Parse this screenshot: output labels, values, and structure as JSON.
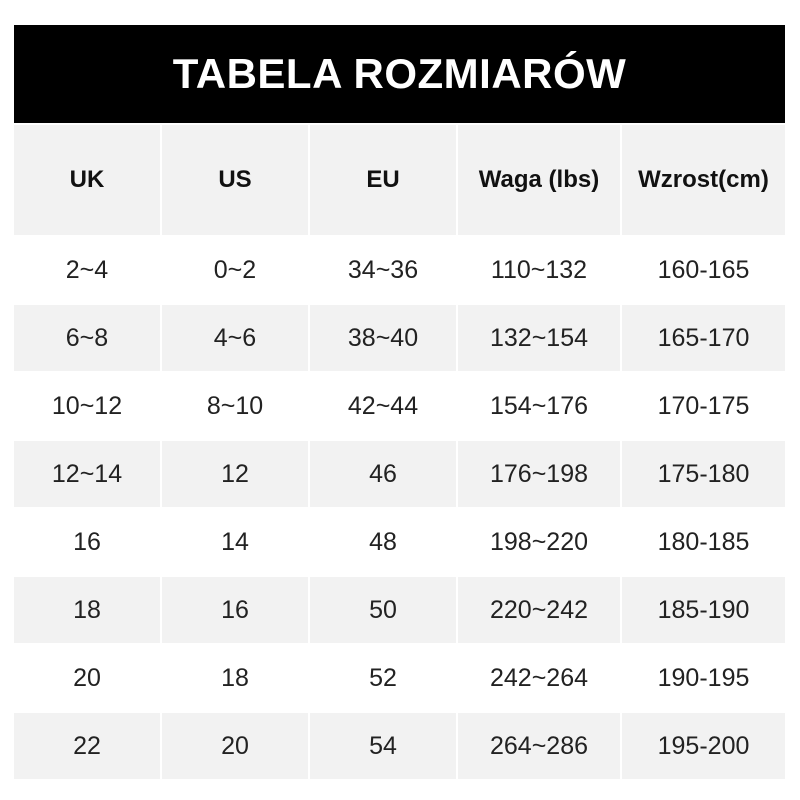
{
  "title": "TABELA ROZMIARÓW",
  "headers": [
    "UK",
    "US",
    "EU",
    "Waga (lbs)",
    "Wzrost(cm)"
  ],
  "rows": [
    [
      "2~4",
      "0~2",
      "34~36",
      "110~132",
      "160-165"
    ],
    [
      "6~8",
      "4~6",
      "38~40",
      "132~154",
      "165-170"
    ],
    [
      "10~12",
      "8~10",
      "42~44",
      "154~176",
      "170-175"
    ],
    [
      "12~14",
      "12",
      "46",
      "176~198",
      "175-180"
    ],
    [
      "16",
      "14",
      "48",
      "198~220",
      "180-185"
    ],
    [
      "18",
      "16",
      "50",
      "220~242",
      "185-190"
    ],
    [
      "20",
      "18",
      "52",
      "242~264",
      "190-195"
    ],
    [
      "22",
      "20",
      "54",
      "264~286",
      "195-200"
    ]
  ],
  "colors": {
    "title_bg": "#000000",
    "stripe": "#f2f2f2"
  }
}
